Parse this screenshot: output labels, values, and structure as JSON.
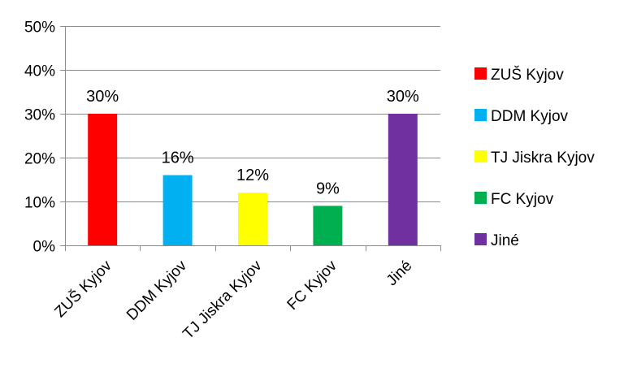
{
  "chart_data": {
    "type": "bar",
    "categories": [
      "ZUŠ Kyjov",
      "DDM Kyjov",
      "TJ Jiskra Kyjov",
      "FC Kyjov",
      "Jiné"
    ],
    "values": [
      30,
      16,
      12,
      9,
      30
    ],
    "data_labels": [
      "30%",
      "16%",
      "12%",
      "9%",
      "30%"
    ],
    "colors": [
      "#ff0000",
      "#00b0f0",
      "#ffff00",
      "#00b050",
      "#7030a0"
    ],
    "ylim": [
      0,
      50
    ],
    "yticks": [
      0,
      10,
      20,
      30,
      40,
      50
    ],
    "ytick_labels": [
      "0%",
      "10%",
      "20%",
      "30%",
      "40%",
      "50%"
    ],
    "grid": true,
    "legend_position": "right",
    "title": "",
    "xlabel": "",
    "ylabel": ""
  }
}
